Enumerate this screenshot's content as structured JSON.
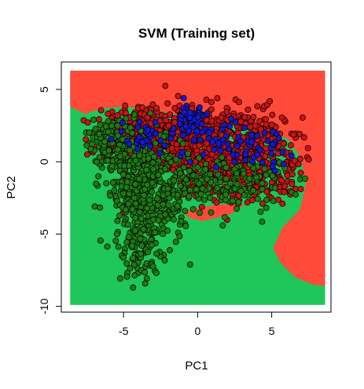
{
  "chart_data": {
    "type": "scatter",
    "title": "SVM (Training set)",
    "xlabel": "PC1",
    "ylabel": "PC2",
    "xlim": [
      -9.2,
      9.0
    ],
    "ylim": [
      -10.4,
      6.9
    ],
    "x_ticks": [
      -5,
      0,
      5
    ],
    "y_ticks": [
      5,
      0,
      -5,
      -10
    ],
    "x_tick_labels": [
      "-5",
      "0",
      "5"
    ],
    "y_tick_labels": [
      "5",
      "0",
      "-5",
      "-10"
    ],
    "grid": false,
    "legend": "none",
    "background_regions": {
      "colors": {
        "red_region": "#ff4a3a",
        "green_region": "#1fc65a"
      },
      "extent": {
        "x": [
          -8.6,
          8.6
        ],
        "y": [
          -9.9,
          6.3
        ]
      },
      "red_region_polygon": [
        [
          -8.6,
          6.3
        ],
        [
          8.6,
          6.3
        ],
        [
          8.6,
          -8.6
        ],
        [
          7.8,
          -8.5
        ],
        [
          6.6,
          -8.0
        ],
        [
          5.6,
          -7.0
        ],
        [
          5.1,
          -6.0
        ],
        [
          5.7,
          -4.6
        ],
        [
          6.9,
          -3.3
        ],
        [
          7.3,
          -1.6
        ],
        [
          7.0,
          0.2
        ],
        [
          6.2,
          1.5
        ],
        [
          5.0,
          2.1
        ],
        [
          3.7,
          2.3
        ],
        [
          2.3,
          2.6
        ],
        [
          1.0,
          2.8
        ],
        [
          -0.5,
          3.0
        ],
        [
          -2.0,
          3.4
        ],
        [
          -3.5,
          3.7
        ],
        [
          -5.0,
          3.8
        ],
        [
          -6.5,
          3.7
        ],
        [
          -7.6,
          3.3
        ],
        [
          -8.6,
          3.8
        ]
      ],
      "red_pocket_polygon": [
        [
          -1.0,
          -3.5
        ],
        [
          0.0,
          -3.2
        ],
        [
          1.2,
          -3.0
        ],
        [
          2.2,
          -2.9
        ],
        [
          3.2,
          -2.9
        ],
        [
          2.3,
          -3.6
        ],
        [
          1.2,
          -3.9
        ],
        [
          0.3,
          -4.1
        ],
        [
          -0.5,
          -3.9
        ]
      ]
    },
    "series": [
      {
        "color": "#c81414",
        "clusters": [
          {
            "cx": -1.0,
            "cy": 1.5,
            "sx": 2.6,
            "sy": 1.2,
            "n": 520
          },
          {
            "cx": 3.0,
            "cy": 1.0,
            "sx": 2.0,
            "sy": 1.3,
            "n": 330
          },
          {
            "cx": -4.0,
            "cy": 2.5,
            "sx": 1.1,
            "sy": 0.8,
            "n": 110
          },
          {
            "cx": 1.5,
            "cy": -1.2,
            "sx": 2.0,
            "sy": 0.9,
            "n": 150
          },
          {
            "cx": 5.5,
            "cy": -1.0,
            "sx": 0.9,
            "sy": 0.8,
            "n": 60
          }
        ]
      },
      {
        "color": "#1f7a14",
        "clusters": [
          {
            "cx": -4.5,
            "cy": 0.0,
            "sx": 1.2,
            "sy": 1.3,
            "n": 240
          },
          {
            "cx": -3.0,
            "cy": -2.5,
            "sx": 1.2,
            "sy": 1.6,
            "n": 260
          },
          {
            "cx": -4.0,
            "cy": -5.5,
            "sx": 0.7,
            "sy": 1.5,
            "n": 120
          },
          {
            "cx": 1.5,
            "cy": -1.5,
            "sx": 2.2,
            "sy": 1.0,
            "n": 200
          },
          {
            "cx": -6.0,
            "cy": 1.8,
            "sx": 0.8,
            "sy": 0.6,
            "n": 70
          }
        ]
      },
      {
        "color": "#1418c8",
        "clusters": [
          {
            "cx": -0.5,
            "cy": 2.5,
            "sx": 1.0,
            "sy": 0.8,
            "n": 60
          },
          {
            "cx": 3.5,
            "cy": 1.2,
            "sx": 1.5,
            "sy": 0.7,
            "n": 60
          },
          {
            "cx": -3.5,
            "cy": 1.8,
            "sx": 1.0,
            "sy": 0.6,
            "n": 30
          }
        ]
      }
    ]
  }
}
